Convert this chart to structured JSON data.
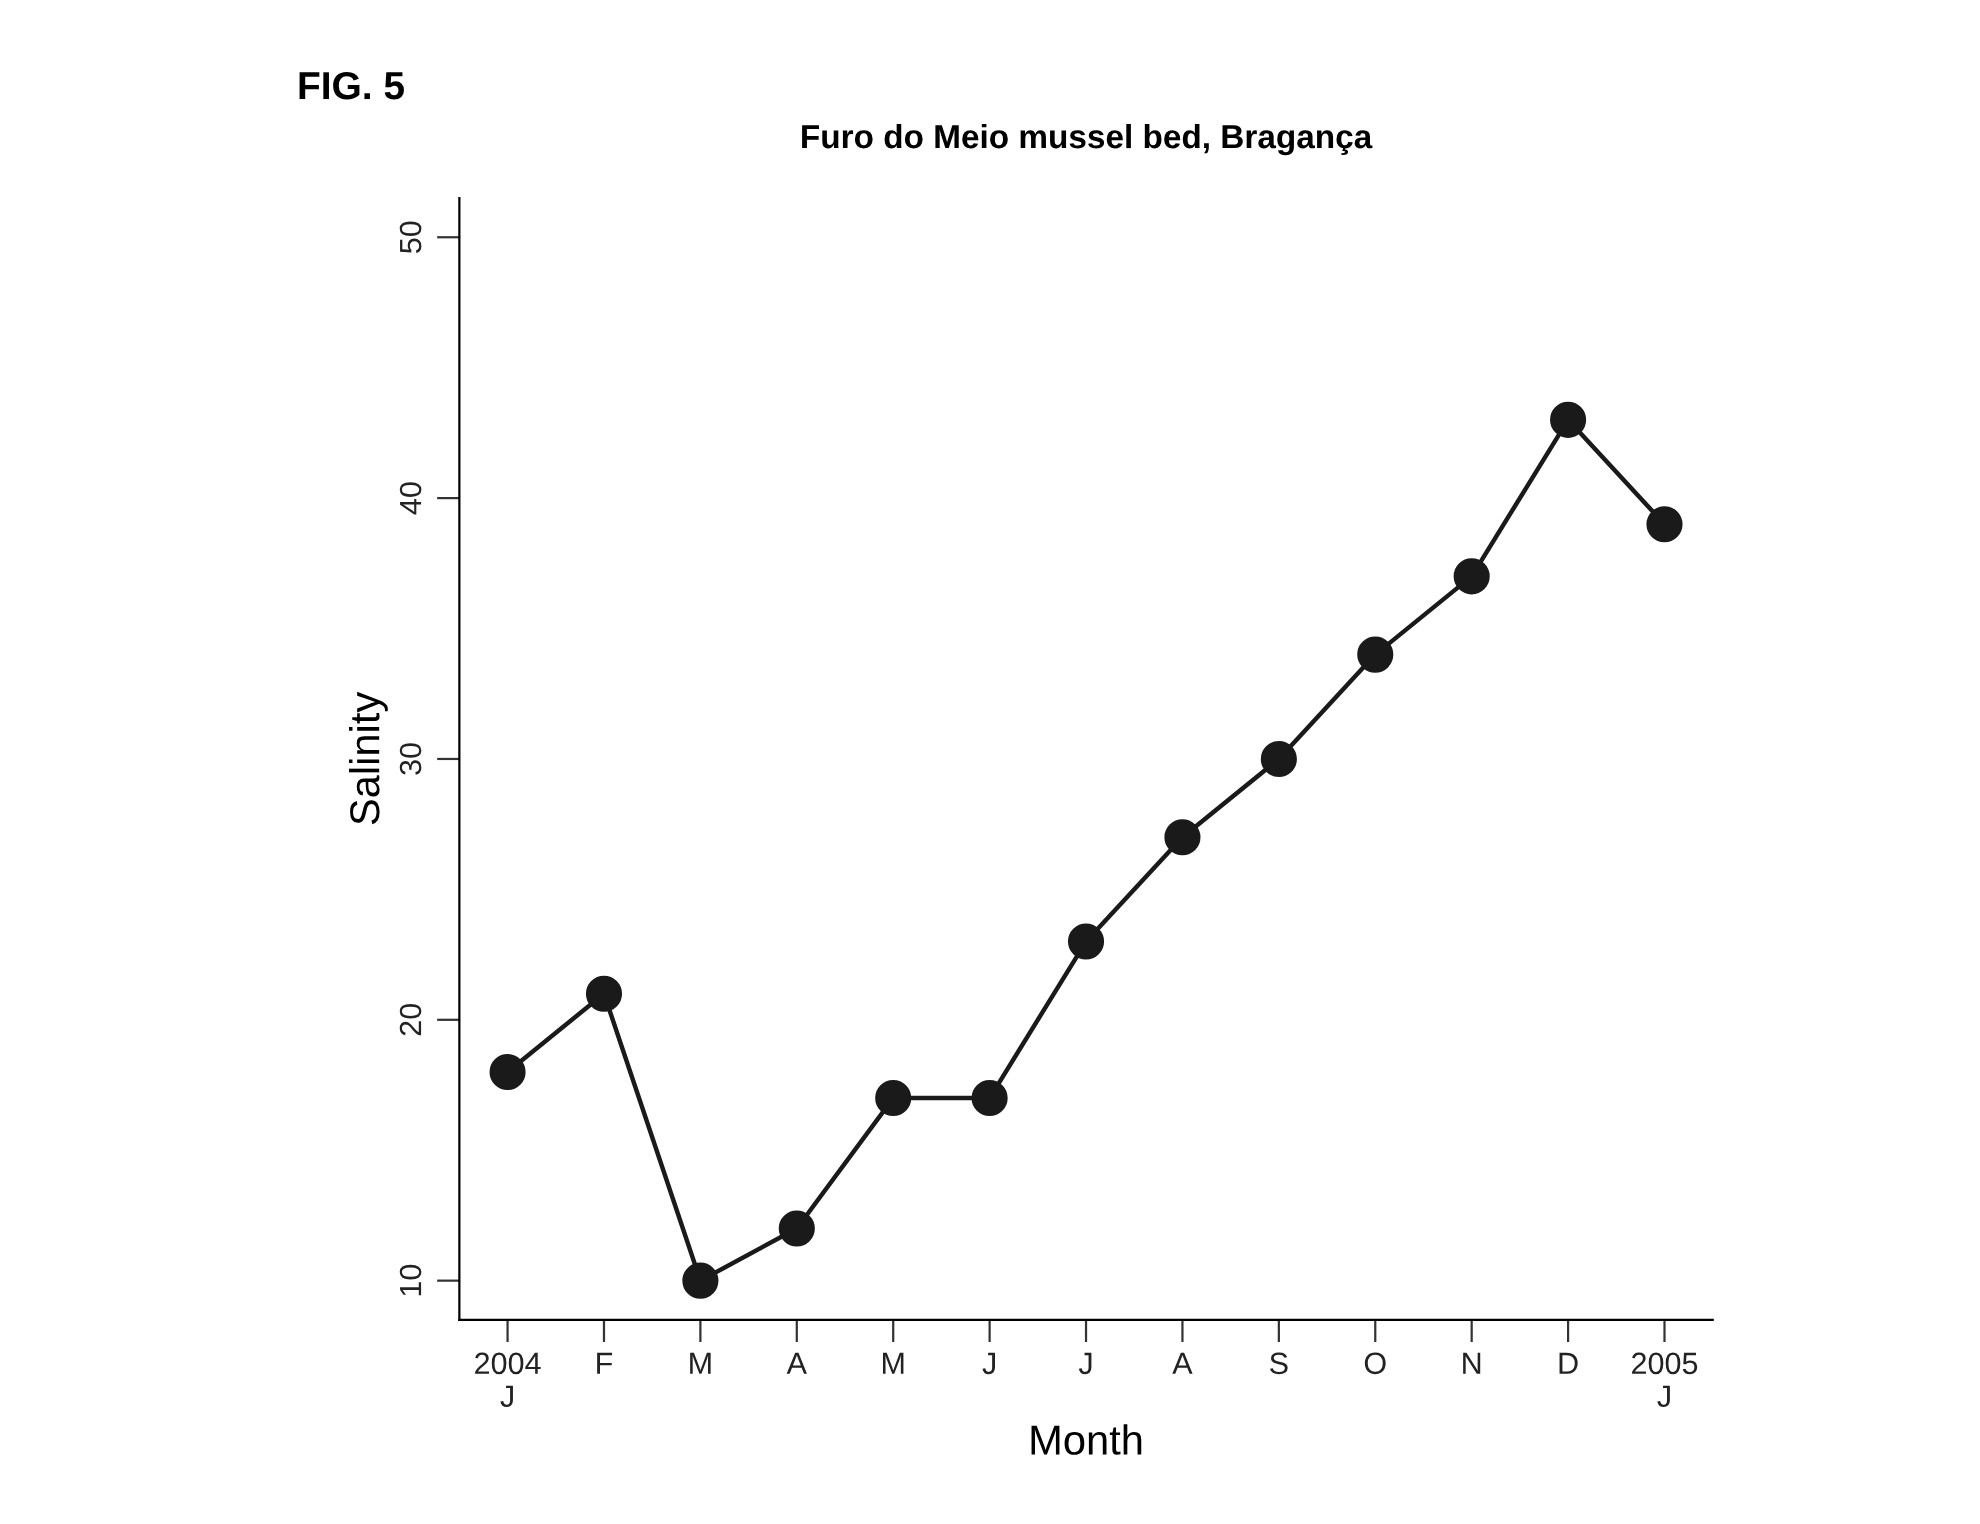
{
  "chart_data": {
    "type": "line",
    "title": "Furo do Meio mussel bed, Bragança",
    "xlabel": "Month",
    "ylabel": "Salinity",
    "annotations": [
      "FIG. 5"
    ],
    "categories": [
      "2004\nJ",
      "F",
      "M",
      "A",
      "M",
      "J",
      "J",
      "A",
      "S",
      "O",
      "N",
      "D",
      "2005\nJ"
    ],
    "series": [
      {
        "color": "#1a1a1a",
        "values": [
          18,
          21,
          10,
          12,
          17,
          17,
          23,
          27,
          30,
          34,
          37,
          43,
          39
        ]
      }
    ],
    "ylim": [
      8.5,
      51.5
    ],
    "yticks": [
      10,
      20,
      30,
      40,
      50
    ],
    "grid": false,
    "legend": false,
    "marker": "circle",
    "line_style": "solid"
  }
}
